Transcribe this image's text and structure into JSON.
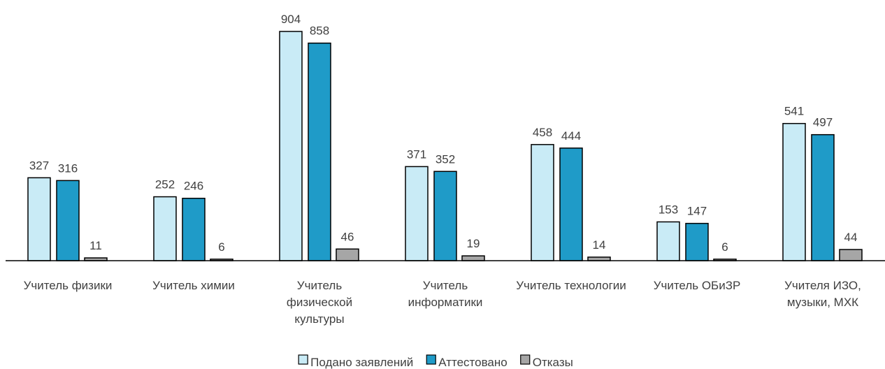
{
  "chart_data": {
    "type": "bar",
    "categories": [
      "Учитель физики",
      "Учитель химии",
      "Учитель физической культуры",
      "Учитель информатики",
      "Учитель технологии",
      "Учитель ОБиЗР",
      "Учителя ИЗО, музыки, МХК"
    ],
    "series": [
      {
        "name": "Подано заявлений",
        "color": "#c9ebf6",
        "values": [
          327,
          252,
          904,
          371,
          458,
          153,
          541
        ]
      },
      {
        "name": "Аттестовано",
        "color": "#1f9bc8",
        "values": [
          316,
          246,
          858,
          352,
          444,
          147,
          497
        ]
      },
      {
        "name": "Отказы",
        "color": "#a6a6a6",
        "values": [
          11,
          6,
          46,
          19,
          14,
          6,
          44
        ]
      }
    ],
    "legend": "bottom"
  }
}
